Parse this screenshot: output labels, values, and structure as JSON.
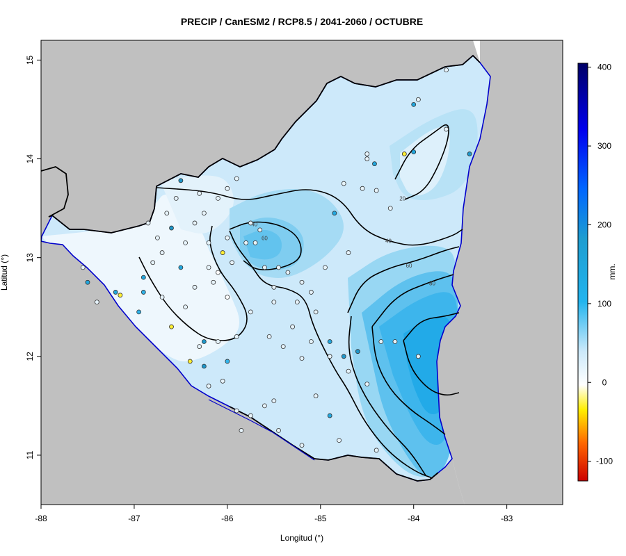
{
  "title": "PRECIP / CanESM2 / RCP8.5 / 2041-2060 / OCTUBRE",
  "xlabel": "Longitud (°)",
  "ylabel": "Latitud (°)",
  "x_ticks": [
    {
      "value": -88,
      "label": "-88"
    },
    {
      "value": -87,
      "label": "-87"
    },
    {
      "value": -86,
      "label": "-86"
    },
    {
      "value": -85,
      "label": "-85"
    },
    {
      "value": -84,
      "label": "-84"
    },
    {
      "value": -83,
      "label": "-83"
    }
  ],
  "y_ticks": [
    {
      "value": 11,
      "label": "11"
    },
    {
      "value": 12,
      "label": "12"
    },
    {
      "value": 13,
      "label": "13"
    },
    {
      "value": 14,
      "label": "14"
    },
    {
      "value": 15,
      "label": "15"
    }
  ],
  "xlim": [
    -88,
    -82.4
  ],
  "ylim": [
    10.5,
    15.2
  ],
  "colorbar": {
    "unit_label": "mm.",
    "range": [
      -125,
      405
    ],
    "ticks": [
      {
        "value": 400,
        "label": "400"
      },
      {
        "value": 300,
        "label": "300"
      },
      {
        "value": 200,
        "label": "200"
      },
      {
        "value": 100,
        "label": "100"
      },
      {
        "value": 0,
        "label": "0"
      },
      {
        "value": -100,
        "label": "-100"
      }
    ]
  },
  "contour_labels": [
    {
      "text": "20",
      "lon": -84.12,
      "lat": 13.6
    },
    {
      "text": "40",
      "lon": -84.27,
      "lat": 13.17
    },
    {
      "text": "60",
      "lon": -84.05,
      "lat": 12.92
    },
    {
      "text": "80",
      "lon": -83.8,
      "lat": 12.74
    },
    {
      "text": "40",
      "lon": -85.71,
      "lat": 13.34
    },
    {
      "text": "60",
      "lon": -85.6,
      "lat": 13.2
    }
  ],
  "colors": {
    "land": "#c0c0c0",
    "sea": "#ffffff",
    "coast": "#0000cc",
    "border": "#000000",
    "contour": "#000000"
  },
  "stations": [
    {
      "lon": -87.5,
      "lat": 12.75,
      "value": 120
    },
    {
      "lon": -87.55,
      "lat": 12.9,
      "value": 20
    },
    {
      "lon": -87.2,
      "lat": 12.65,
      "value": 110
    },
    {
      "lon": -87.15,
      "lat": 12.62,
      "value": -60
    },
    {
      "lon": -87.4,
      "lat": 12.55,
      "value": 20
    },
    {
      "lon": -86.95,
      "lat": 12.45,
      "value": 100
    },
    {
      "lon": -86.9,
      "lat": 12.65,
      "value": 80
    },
    {
      "lon": -86.9,
      "lat": 12.8,
      "value": 110
    },
    {
      "lon": -86.7,
      "lat": 12.6,
      "value": 20
    },
    {
      "lon": -86.6,
      "lat": 12.3,
      "value": -50
    },
    {
      "lon": -86.5,
      "lat": 12.9,
      "value": 130
    },
    {
      "lon": -86.6,
      "lat": 13.3,
      "value": 150
    },
    {
      "lon": -86.65,
      "lat": 13.45,
      "value": 40
    },
    {
      "lon": -86.55,
      "lat": 13.6,
      "value": 10
    },
    {
      "lon": -86.3,
      "lat": 13.65,
      "value": 20
    },
    {
      "lon": -86.0,
      "lat": 13.7,
      "value": 20
    },
    {
      "lon": -85.9,
      "lat": 13.8,
      "value": 20
    },
    {
      "lon": -86.5,
      "lat": 13.78,
      "value": 150
    },
    {
      "lon": -86.1,
      "lat": 13.6,
      "value": 40
    },
    {
      "lon": -86.0,
      "lat": 13.2,
      "value": 20
    },
    {
      "lon": -86.05,
      "lat": 13.05,
      "value": -60
    },
    {
      "lon": -86.2,
      "lat": 12.9,
      "value": 20
    },
    {
      "lon": -86.1,
      "lat": 12.85,
      "value": -40
    },
    {
      "lon": -86.0,
      "lat": 12.6,
      "value": -30
    },
    {
      "lon": -85.95,
      "lat": 12.95,
      "value": 20
    },
    {
      "lon": -85.8,
      "lat": 13.15,
      "value": 20
    },
    {
      "lon": -85.7,
      "lat": 13.15,
      "value": 20
    },
    {
      "lon": -85.75,
      "lat": 13.35,
      "value": 20
    },
    {
      "lon": -85.65,
      "lat": 13.28,
      "value": 20
    },
    {
      "lon": -85.6,
      "lat": 12.9,
      "value": 20
    },
    {
      "lon": -85.5,
      "lat": 12.7,
      "value": 20
    },
    {
      "lon": -85.5,
      "lat": 12.55,
      "value": 20
    },
    {
      "lon": -85.3,
      "lat": 12.3,
      "value": 20
    },
    {
      "lon": -85.2,
      "lat": 11.98,
      "value": 20
    },
    {
      "lon": -85.4,
      "lat": 12.1,
      "value": 20
    },
    {
      "lon": -85.55,
      "lat": 12.2,
      "value": 20
    },
    {
      "lon": -85.75,
      "lat": 12.45,
      "value": 20
    },
    {
      "lon": -85.9,
      "lat": 12.2,
      "value": 20
    },
    {
      "lon": -86.1,
      "lat": 12.15,
      "value": 20
    },
    {
      "lon": -86.3,
      "lat": 12.1,
      "value": 20
    },
    {
      "lon": -86.25,
      "lat": 12.15,
      "value": 150
    },
    {
      "lon": -86.25,
      "lat": 11.9,
      "value": 150
    },
    {
      "lon": -86.0,
      "lat": 11.95,
      "value": 100
    },
    {
      "lon": -86.05,
      "lat": 11.75,
      "value": 20
    },
    {
      "lon": -86.2,
      "lat": 11.7,
      "value": 20
    },
    {
      "lon": -86.4,
      "lat": 11.95,
      "value": -50
    },
    {
      "lon": -85.9,
      "lat": 11.45,
      "value": 20
    },
    {
      "lon": -85.75,
      "lat": 11.4,
      "value": 20
    },
    {
      "lon": -85.6,
      "lat": 11.5,
      "value": 20
    },
    {
      "lon": -85.5,
      "lat": 11.55,
      "value": 20
    },
    {
      "lon": -85.45,
      "lat": 11.25,
      "value": 20
    },
    {
      "lon": -85.85,
      "lat": 11.25,
      "value": 20
    },
    {
      "lon": -85.2,
      "lat": 11.1,
      "value": 20
    },
    {
      "lon": -85.05,
      "lat": 11.6,
      "value": 20
    },
    {
      "lon": -84.9,
      "lat": 11.4,
      "value": 120
    },
    {
      "lon": -84.8,
      "lat": 11.15,
      "value": 20
    },
    {
      "lon": -84.4,
      "lat": 11.05,
      "value": 20
    },
    {
      "lon": -84.7,
      "lat": 11.85,
      "value": 20
    },
    {
      "lon": -84.5,
      "lat": 11.72,
      "value": 20
    },
    {
      "lon": -84.6,
      "lat": 12.05,
      "value": 150
    },
    {
      "lon": -84.75,
      "lat": 12.0,
      "value": 150
    },
    {
      "lon": -84.9,
      "lat": 12.0,
      "value": 20
    },
    {
      "lon": -85.1,
      "lat": 12.15,
      "value": 20
    },
    {
      "lon": -84.9,
      "lat": 12.15,
      "value": 120
    },
    {
      "lon": -84.35,
      "lat": 12.15,
      "value": 20
    },
    {
      "lon": -84.2,
      "lat": 12.15,
      "value": 20
    },
    {
      "lon": -83.95,
      "lat": 12.0,
      "value": 20
    },
    {
      "lon": -84.95,
      "lat": 12.9,
      "value": 20
    },
    {
      "lon": -84.85,
      "lat": 13.45,
      "value": 120
    },
    {
      "lon": -84.7,
      "lat": 13.05,
      "value": 20
    },
    {
      "lon": -84.75,
      "lat": 13.75,
      "value": 20
    },
    {
      "lon": -84.5,
      "lat": 14.0,
      "value": 20
    },
    {
      "lon": -84.42,
      "lat": 13.95,
      "value": 120
    },
    {
      "lon": -84.5,
      "lat": 14.05,
      "value": 20
    },
    {
      "lon": -84.55,
      "lat": 13.7,
      "value": 20
    },
    {
      "lon": -84.4,
      "lat": 13.68,
      "value": 20
    },
    {
      "lon": -84.25,
      "lat": 13.5,
      "value": 20
    },
    {
      "lon": -84.1,
      "lat": 14.05,
      "value": -60
    },
    {
      "lon": -84.0,
      "lat": 14.07,
      "value": 120
    },
    {
      "lon": -84.0,
      "lat": 14.55,
      "value": 120
    },
    {
      "lon": -83.95,
      "lat": 14.6,
      "value": 20
    },
    {
      "lon": -83.65,
      "lat": 14.3,
      "value": 20
    },
    {
      "lon": -83.65,
      "lat": 14.9,
      "value": 20
    },
    {
      "lon": -83.4,
      "lat": 14.05,
      "value": 150
    },
    {
      "lon": -85.2,
      "lat": 12.75,
      "value": 20
    },
    {
      "lon": -85.35,
      "lat": 12.85,
      "value": 20
    },
    {
      "lon": -85.05,
      "lat": 12.45,
      "value": 20
    },
    {
      "lon": -85.25,
      "lat": 12.55,
      "value": 20
    },
    {
      "lon": -85.45,
      "lat": 12.9,
      "value": 20
    },
    {
      "lon": -85.1,
      "lat": 12.65,
      "value": 20
    },
    {
      "lon": -86.35,
      "lat": 13.35,
      "value": 20
    },
    {
      "lon": -86.25,
      "lat": 13.45,
      "value": 20
    },
    {
      "lon": -86.2,
      "lat": 13.15,
      "value": 20
    },
    {
      "lon": -86.15,
      "lat": 12.75,
      "value": 20
    },
    {
      "lon": -86.35,
      "lat": 12.7,
      "value": 20
    },
    {
      "lon": -86.45,
      "lat": 12.5,
      "value": 20
    },
    {
      "lon": -86.8,
      "lat": 12.95,
      "value": 20
    },
    {
      "lon": -86.7,
      "lat": 13.05,
      "value": 20
    },
    {
      "lon": -86.75,
      "lat": 13.2,
      "value": 20
    },
    {
      "lon": -86.85,
      "lat": 13.35,
      "value": 20
    },
    {
      "lon": -86.45,
      "lat": 13.15,
      "value": 20
    }
  ]
}
